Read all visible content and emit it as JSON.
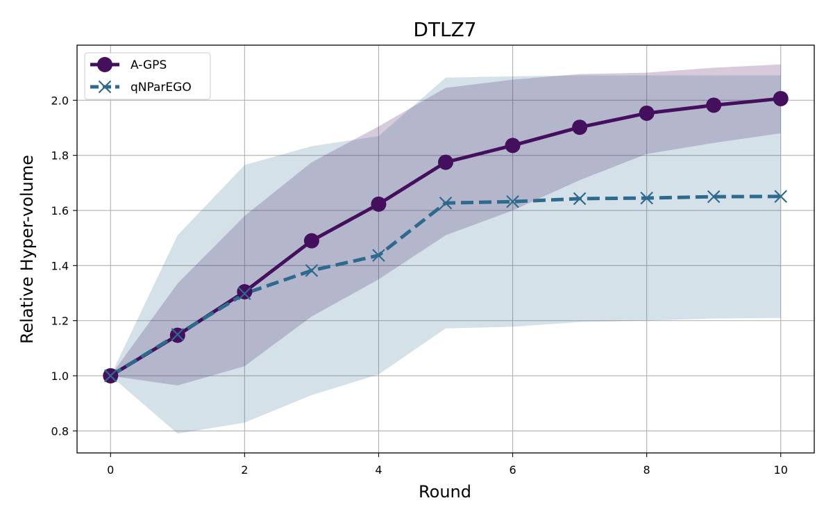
{
  "chart_data": {
    "type": "line",
    "title": "DTLZ7",
    "xlabel": "Round",
    "ylabel": "Relative Hyper-volume",
    "x": [
      0,
      1,
      2,
      3,
      4,
      5,
      6,
      7,
      8,
      9,
      10
    ],
    "xlim": [
      -0.5,
      10.5
    ],
    "ylim": [
      0.72,
      2.2
    ],
    "xticks": [
      0,
      2,
      4,
      6,
      8,
      10
    ],
    "xtick_labels": [
      "0",
      "2",
      "4",
      "6",
      "8",
      "10"
    ],
    "yticks": [
      0.8,
      1.0,
      1.2,
      1.4,
      1.6,
      1.8,
      2.0
    ],
    "ytick_labels": [
      "0.8",
      "1.0",
      "1.2",
      "1.4",
      "1.6",
      "1.8",
      "2.0"
    ],
    "grid": true,
    "legend_position": "top-left",
    "series": [
      {
        "name": "A-GPS",
        "color": "#440f5c",
        "linestyle": "solid",
        "marker": "circle",
        "values": [
          1.0,
          1.147,
          1.305,
          1.49,
          1.623,
          1.775,
          1.836,
          1.902,
          1.953,
          1.982,
          2.006
        ],
        "band_lower": [
          1.0,
          0.965,
          1.035,
          1.215,
          1.35,
          1.51,
          1.6,
          1.71,
          1.805,
          1.845,
          1.88
        ],
        "band_upper": [
          1.0,
          1.335,
          1.58,
          1.775,
          1.905,
          2.045,
          2.075,
          2.095,
          2.1,
          2.118,
          2.13
        ]
      },
      {
        "name": "qNParEGO",
        "color": "#2e6a8d",
        "linestyle": "dashed",
        "marker": "x",
        "values": [
          1.0,
          1.15,
          1.298,
          1.382,
          1.437,
          1.627,
          1.632,
          1.643,
          1.645,
          1.65,
          1.651
        ],
        "band_lower": [
          1.0,
          0.79,
          0.83,
          0.93,
          1.005,
          1.172,
          1.178,
          1.195,
          1.2,
          1.208,
          1.21
        ],
        "band_upper": [
          1.0,
          1.51,
          1.765,
          1.833,
          1.87,
          2.082,
          2.087,
          2.09,
          2.09,
          2.09,
          2.09
        ]
      }
    ]
  }
}
